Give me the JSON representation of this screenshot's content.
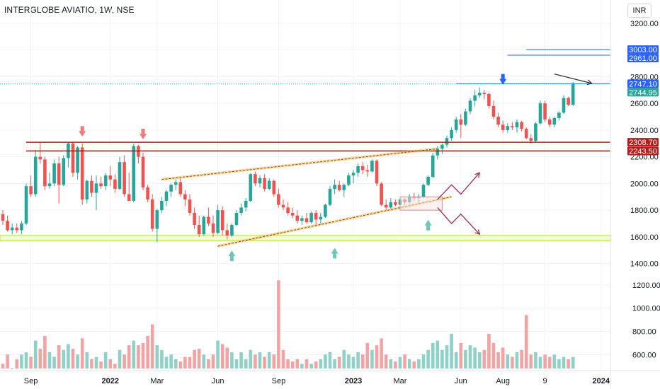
{
  "header": {
    "title": "INTERGLOBE AVIATIO, 1W, NSE",
    "currency": "INR"
  },
  "colors": {
    "up": "#26a69a",
    "down": "#ef5350",
    "vol_up": "#8fd1c6",
    "vol_down": "#f2a3a3",
    "red_line": "#b71c1c",
    "blue_line": "#2962ff",
    "channel": "#f5b041",
    "support": "#c6f05a",
    "arrow": "#a0284f"
  },
  "chart_data": {
    "type": "candlestick",
    "title": "INTERGLOBE AVIATIO, 1W, NSE",
    "ylim": [
      1340,
      3300
    ],
    "y_ticks": [
      1400,
      1600,
      1800,
      2000,
      2200,
      2400,
      2600,
      2800,
      3000,
      3200
    ],
    "y_tick_labels": [
      "1400.00",
      "1600.00",
      "1800.00",
      "2000.00",
      "2200.00",
      "2400.00",
      "2600.00",
      "2800.00",
      "3000.00",
      "3200.00"
    ],
    "volume_ticks": [
      600,
      800,
      1000,
      1200
    ],
    "volume_tick_labels": [
      "600.00",
      "800.00",
      "1000.00",
      "1200.00"
    ],
    "x_ticks": [
      {
        "i": 6,
        "label": "Sep",
        "bold": false
      },
      {
        "i": 23,
        "label": "2022",
        "bold": true
      },
      {
        "i": 33,
        "label": "Mar",
        "bold": false
      },
      {
        "i": 46,
        "label": "Jun",
        "bold": false
      },
      {
        "i": 59,
        "label": "Sep",
        "bold": false
      },
      {
        "i": 75,
        "label": "2023",
        "bold": true
      },
      {
        "i": 85,
        "label": "Mar",
        "bold": false
      },
      {
        "i": 98,
        "label": "Jun",
        "bold": false
      },
      {
        "i": 107,
        "label": "Aug",
        "bold": false
      },
      {
        "i": 116,
        "label": "9",
        "bold": false
      },
      {
        "i": 128,
        "label": "2024",
        "bold": true
      }
    ],
    "price_tags": [
      {
        "value": 3003.0,
        "label": "3003.00",
        "color": "blue"
      },
      {
        "value": 2961.0,
        "label": "2961.00",
        "color": "blue"
      },
      {
        "value": 2747.1,
        "label": "2747.10",
        "color": "blue"
      },
      {
        "value": 2744.95,
        "label": "2744.95",
        "color": "green"
      },
      {
        "value": 2308.7,
        "label": "2308.70",
        "color": "red"
      },
      {
        "value": 2243.5,
        "label": "2243.50",
        "color": "red"
      }
    ],
    "candles": [
      [
        1770,
        1800,
        1690,
        1720,
        520
      ],
      [
        1720,
        1760,
        1640,
        1650,
        600
      ],
      [
        1650,
        1700,
        1620,
        1670,
        480
      ],
      [
        1670,
        1700,
        1630,
        1650,
        560
      ],
      [
        1650,
        1720,
        1620,
        1700,
        600
      ],
      [
        1700,
        2000,
        1690,
        1980,
        620
      ],
      [
        1980,
        2060,
        1900,
        1920,
        580
      ],
      [
        1920,
        2250,
        1900,
        2200,
        720
      ],
      [
        2200,
        2310,
        2150,
        2180,
        650
      ],
      [
        2180,
        2200,
        1950,
        1980,
        760
      ],
      [
        1980,
        2080,
        1960,
        2000,
        620
      ],
      [
        2000,
        2180,
        1980,
        2150,
        580
      ],
      [
        2150,
        2200,
        1850,
        1990,
        680
      ],
      [
        1990,
        2210,
        1980,
        2190,
        640
      ],
      [
        2190,
        2310,
        2120,
        2300,
        690
      ],
      [
        2300,
        2310,
        2050,
        2080,
        650
      ],
      [
        2080,
        2280,
        2030,
        2270,
        600
      ],
      [
        2270,
        2300,
        1840,
        1880,
        740
      ],
      [
        1880,
        2030,
        1850,
        2020,
        620
      ],
      [
        2020,
        2060,
        1900,
        1930,
        560
      ],
      [
        1930,
        2060,
        1800,
        2000,
        580
      ],
      [
        2000,
        2050,
        1960,
        1980,
        540
      ],
      [
        1980,
        2080,
        1950,
        2060,
        620
      ],
      [
        2060,
        2130,
        1980,
        2030,
        560
      ],
      [
        2030,
        2070,
        1930,
        1960,
        520
      ],
      [
        1960,
        2200,
        1950,
        2160,
        640
      ],
      [
        2160,
        2210,
        1900,
        1920,
        600
      ],
      [
        1920,
        2080,
        1870,
        1870,
        680
      ],
      [
        1870,
        2300,
        1860,
        2280,
        720
      ],
      [
        2280,
        2290,
        2150,
        2200,
        680
      ],
      [
        2200,
        2230,
        1950,
        1970,
        700
      ],
      [
        1970,
        1990,
        1860,
        1880,
        760
      ],
      [
        1880,
        1920,
        1640,
        1660,
        860
      ],
      [
        1660,
        1810,
        1560,
        1800,
        680
      ],
      [
        1800,
        1900,
        1780,
        1870,
        640
      ],
      [
        1870,
        1950,
        1830,
        1940,
        580
      ],
      [
        1940,
        2000,
        1900,
        1990,
        600
      ],
      [
        1990,
        2030,
        1950,
        2010,
        560
      ],
      [
        2010,
        2040,
        1900,
        1920,
        540
      ],
      [
        1920,
        1950,
        1830,
        1880,
        580
      ],
      [
        1880,
        1920,
        1760,
        1780,
        580
      ],
      [
        1780,
        1820,
        1660,
        1690,
        640
      ],
      [
        1690,
        1760,
        1600,
        1620,
        650
      ],
      [
        1620,
        1760,
        1610,
        1750,
        600
      ],
      [
        1750,
        1820,
        1680,
        1700,
        560
      ],
      [
        1700,
        1760,
        1600,
        1630,
        600
      ],
      [
        1630,
        1840,
        1620,
        1800,
        720
      ],
      [
        1800,
        1830,
        1610,
        1650,
        690
      ],
      [
        1650,
        1700,
        1580,
        1610,
        660
      ],
      [
        1610,
        1700,
        1600,
        1690,
        620
      ],
      [
        1690,
        1800,
        1680,
        1780,
        560
      ],
      [
        1780,
        1850,
        1760,
        1820,
        620
      ],
      [
        1820,
        1890,
        1790,
        1870,
        560
      ],
      [
        1870,
        2080,
        1860,
        2070,
        640
      ],
      [
        2070,
        2090,
        1980,
        2000,
        600
      ],
      [
        2000,
        2060,
        1970,
        2040,
        620
      ],
      [
        2040,
        2070,
        1940,
        1960,
        580
      ],
      [
        1960,
        2040,
        1950,
        2020,
        620
      ],
      [
        2020,
        2030,
        1900,
        1920,
        600
      ],
      [
        1920,
        1960,
        1820,
        1840,
        1240
      ],
      [
        1840,
        1880,
        1800,
        1820,
        640
      ],
      [
        1820,
        1860,
        1760,
        1780,
        560
      ],
      [
        1780,
        1820,
        1740,
        1760,
        540
      ],
      [
        1760,
        1800,
        1700,
        1720,
        560
      ],
      [
        1720,
        1760,
        1690,
        1740,
        520
      ],
      [
        1740,
        1780,
        1700,
        1710,
        560
      ],
      [
        1710,
        1790,
        1700,
        1780,
        520
      ],
      [
        1780,
        1800,
        1680,
        1730,
        540
      ],
      [
        1730,
        1780,
        1700,
        1750,
        560
      ],
      [
        1750,
        1850,
        1740,
        1840,
        600
      ],
      [
        1840,
        1980,
        1830,
        1960,
        620
      ],
      [
        1960,
        2030,
        1920,
        1990,
        560
      ],
      [
        1990,
        2020,
        1940,
        1950,
        580
      ],
      [
        1950,
        2000,
        1900,
        1990,
        640
      ],
      [
        1990,
        2080,
        1980,
        2060,
        600
      ],
      [
        2060,
        2100,
        2000,
        2080,
        580
      ],
      [
        2080,
        2150,
        2050,
        2130,
        620
      ],
      [
        2130,
        2160,
        2070,
        2100,
        600
      ],
      [
        2100,
        2140,
        2050,
        2090,
        700
      ],
      [
        2090,
        2180,
        2080,
        2170,
        640
      ],
      [
        2170,
        2180,
        1980,
        2000,
        680
      ],
      [
        2000,
        2010,
        1830,
        1840,
        740
      ],
      [
        1840,
        1880,
        1800,
        1820,
        600
      ],
      [
        1820,
        1890,
        1810,
        1860,
        560
      ],
      [
        1860,
        1880,
        1830,
        1840,
        540
      ],
      [
        1840,
        1890,
        1820,
        1880,
        580
      ],
      [
        1880,
        1890,
        1840,
        1860,
        600
      ],
      [
        1860,
        1920,
        1850,
        1900,
        560
      ],
      [
        1900,
        1930,
        1870,
        1890,
        540
      ],
      [
        1890,
        1920,
        1850,
        1900,
        560
      ],
      [
        1900,
        2000,
        1890,
        1990,
        600
      ],
      [
        1990,
        2060,
        1980,
        2050,
        640
      ],
      [
        2050,
        2230,
        2040,
        2210,
        700
      ],
      [
        2210,
        2280,
        2180,
        2260,
        720
      ],
      [
        2260,
        2300,
        2220,
        2290,
        640
      ],
      [
        2290,
        2360,
        2270,
        2340,
        680
      ],
      [
        2340,
        2420,
        2320,
        2400,
        780
      ],
      [
        2400,
        2500,
        2380,
        2480,
        620
      ],
      [
        2480,
        2520,
        2340,
        2440,
        700
      ],
      [
        2440,
        2560,
        2430,
        2540,
        640
      ],
      [
        2540,
        2640,
        2520,
        2620,
        680
      ],
      [
        2620,
        2700,
        2580,
        2660,
        660
      ],
      [
        2660,
        2720,
        2640,
        2680,
        620
      ],
      [
        2680,
        2700,
        2630,
        2670,
        640
      ],
      [
        2670,
        2680,
        2560,
        2580,
        780
      ],
      [
        2580,
        2620,
        2480,
        2500,
        700
      ],
      [
        2500,
        2530,
        2420,
        2440,
        620
      ],
      [
        2440,
        2470,
        2380,
        2400,
        660
      ],
      [
        2400,
        2450,
        2380,
        2430,
        600
      ],
      [
        2430,
        2460,
        2400,
        2420,
        580
      ],
      [
        2420,
        2480,
        2380,
        2460,
        620
      ],
      [
        2460,
        2470,
        2390,
        2410,
        640
      ],
      [
        2410,
        2420,
        2330,
        2340,
        940
      ],
      [
        2340,
        2370,
        2300,
        2320,
        600
      ],
      [
        2320,
        2460,
        2310,
        2450,
        620
      ],
      [
        2450,
        2620,
        2440,
        2600,
        580
      ],
      [
        2600,
        2620,
        2460,
        2480,
        600
      ],
      [
        2480,
        2500,
        2420,
        2440,
        580
      ],
      [
        2440,
        2500,
        2420,
        2490,
        600
      ],
      [
        2490,
        2540,
        2470,
        2530,
        560
      ],
      [
        2530,
        2660,
        2520,
        2640,
        580
      ],
      [
        2640,
        2650,
        2580,
        2590,
        560
      ],
      [
        2590,
        2760,
        2580,
        2745,
        580
      ]
    ],
    "horizontal_lines": [
      {
        "value": 2308.7,
        "style": "red",
        "from": 5,
        "to": 128
      },
      {
        "value": 2243.5,
        "style": "red",
        "from": 5,
        "to": 128
      },
      {
        "value": 2747.1,
        "style": "blue",
        "from": 97,
        "to": 128
      },
      {
        "value": 3003.0,
        "style": "blue",
        "from": 112,
        "to": 128
      },
      {
        "value": 2961.0,
        "style": "blue",
        "from": 108,
        "to": 128
      }
    ],
    "support_band": [
      1572,
      1612
    ],
    "channel": [
      {
        "from": [
          34,
          2030
        ],
        "to": [
          93,
          2260
        ]
      },
      {
        "from": [
          46,
          1530
        ],
        "to": [
          96,
          1900
        ]
      }
    ]
  }
}
